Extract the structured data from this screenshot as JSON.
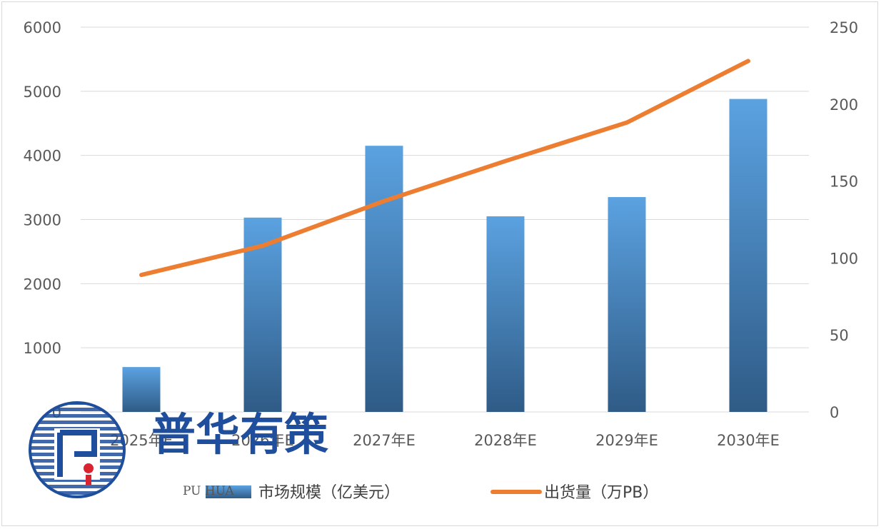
{
  "chart_data": {
    "type": "bar",
    "categories": [
      "2025年E",
      "2026年E",
      "2027年E",
      "2028年E",
      "2029年E",
      "2030年E"
    ],
    "series": [
      {
        "name": "市场规模（亿美元）",
        "type": "bar",
        "axis": "left",
        "values": [
          700,
          3030,
          4150,
          3050,
          3350,
          4880
        ]
      },
      {
        "name": "出货量（万PB）",
        "type": "line",
        "axis": "right",
        "values": [
          89,
          108,
          137,
          163,
          188,
          228
        ]
      }
    ],
    "y_left": {
      "ticks": [
        "0",
        "1000",
        "2000",
        "3000",
        "4000",
        "5000",
        "6000"
      ],
      "range": [
        0,
        6000
      ]
    },
    "y_right": {
      "ticks": [
        "0",
        "50",
        "100",
        "150",
        "200",
        "250"
      ],
      "range": [
        0,
        250
      ]
    },
    "grid": true,
    "legend": "bottom-center",
    "colors": {
      "bar_top": "#5ba2e1",
      "bar_bottom": "#2f5b86",
      "line": "#ed7d31",
      "grid": "#d9d9d9"
    }
  },
  "watermark": {
    "title": "普华有策",
    "subtitle": "PU HUA",
    "logo_icon": "puhua-logo-icon"
  }
}
